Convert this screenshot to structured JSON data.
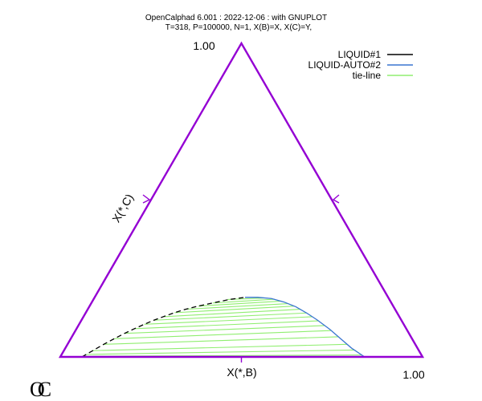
{
  "header": {
    "line1": "OpenCalphad   6.001 :  2022-12-06 : with GNUPLOT",
    "line2": "T=318, P=100000, N=1, X(B)=X,  X(C)=Y,"
  },
  "logo_text": "OC",
  "colors": {
    "triangle": "#9400d3",
    "liquid1": "#000000",
    "liquid2": "#3a75d0",
    "tieline": "#90ee70"
  },
  "chart_data": {
    "type": "ternary-phase-diagram",
    "apex_label": "1.00",
    "right_corner_label": "1.00",
    "xlabel": "X(*,B)",
    "ylabel": "X(*,C)",
    "x_range": [
      0,
      1
    ],
    "y_range": [
      0,
      1
    ],
    "legend_position": "top-right",
    "legend": [
      {
        "name": "LIQUID#1",
        "color": "#000000"
      },
      {
        "name": "LIQUID-AUTO#2",
        "color": "#3a75d0"
      },
      {
        "name": "tie-line",
        "color": "#90ee70"
      }
    ],
    "liquid1_boundary": [
      [
        0.06,
        0.0
      ],
      [
        0.08,
        0.02
      ],
      [
        0.1,
        0.04
      ],
      [
        0.12,
        0.058
      ],
      [
        0.14,
        0.075
      ],
      [
        0.16,
        0.09
      ],
      [
        0.18,
        0.104
      ],
      [
        0.2,
        0.117
      ],
      [
        0.22,
        0.128
      ],
      [
        0.245,
        0.141
      ],
      [
        0.27,
        0.152
      ],
      [
        0.3,
        0.162
      ],
      [
        0.335,
        0.172
      ],
      [
        0.375,
        0.183
      ],
      [
        0.415,
        0.19
      ]
    ],
    "liquid2_boundary": [
      [
        0.415,
        0.19
      ],
      [
        0.45,
        0.19
      ],
      [
        0.49,
        0.186
      ],
      [
        0.53,
        0.175
      ],
      [
        0.57,
        0.16
      ],
      [
        0.61,
        0.14
      ],
      [
        0.65,
        0.118
      ],
      [
        0.7,
        0.088
      ],
      [
        0.745,
        0.058
      ],
      [
        0.79,
        0.028
      ],
      [
        0.84,
        0.0
      ]
    ],
    "tie_lines": [
      {
        "x1": 0.37,
        "y1": 0.183,
        "x2": 0.478,
        "y2": 0.188
      },
      {
        "x1": 0.335,
        "y1": 0.172,
        "x2": 0.5,
        "y2": 0.184
      },
      {
        "x1": 0.3,
        "y1": 0.162,
        "x2": 0.522,
        "y2": 0.178
      },
      {
        "x1": 0.27,
        "y1": 0.152,
        "x2": 0.545,
        "y2": 0.17
      },
      {
        "x1": 0.245,
        "y1": 0.141,
        "x2": 0.565,
        "y2": 0.162
      },
      {
        "x1": 0.22,
        "y1": 0.128,
        "x2": 0.588,
        "y2": 0.152
      },
      {
        "x1": 0.2,
        "y1": 0.117,
        "x2": 0.61,
        "y2": 0.14
      },
      {
        "x1": 0.18,
        "y1": 0.104,
        "x2": 0.632,
        "y2": 0.128
      },
      {
        "x1": 0.16,
        "y1": 0.09,
        "x2": 0.655,
        "y2": 0.115
      },
      {
        "x1": 0.14,
        "y1": 0.075,
        "x2": 0.68,
        "y2": 0.1
      },
      {
        "x1": 0.12,
        "y1": 0.058,
        "x2": 0.705,
        "y2": 0.084
      },
      {
        "x1": 0.1,
        "y1": 0.04,
        "x2": 0.735,
        "y2": 0.064
      },
      {
        "x1": 0.08,
        "y1": 0.02,
        "x2": 0.772,
        "y2": 0.04
      },
      {
        "x1": 0.068,
        "y1": 0.008,
        "x2": 0.8,
        "y2": 0.022
      },
      {
        "x1": 0.062,
        "y1": 0.002,
        "x2": 0.83,
        "y2": 0.006
      }
    ]
  }
}
